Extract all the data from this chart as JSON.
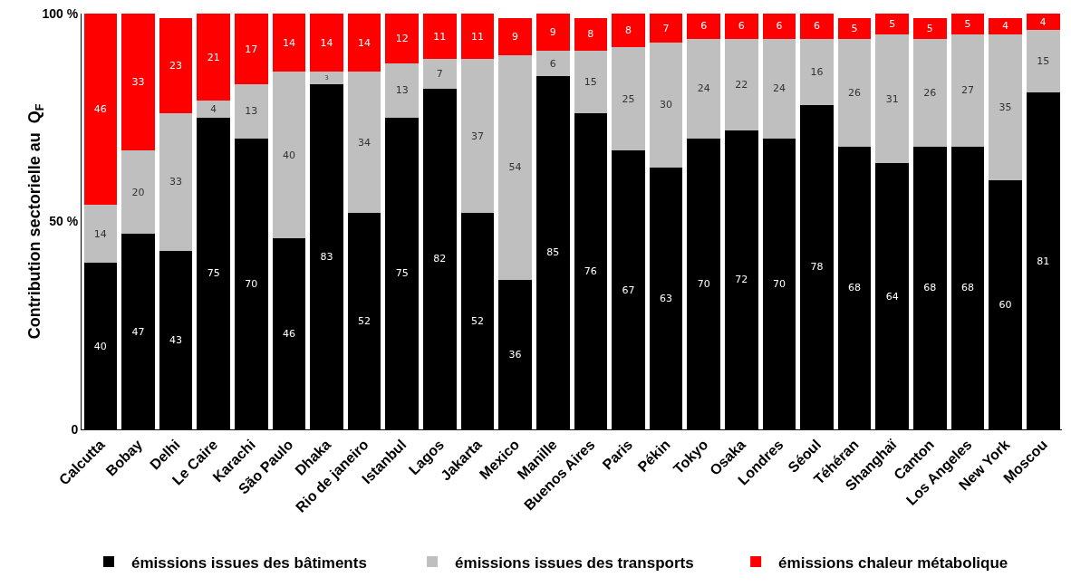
{
  "chart_data": {
    "type": "bar",
    "stacked": true,
    "ylabel": "Contribution sectorielle au  Q$_{F}$",
    "categories": [
      "Calcutta",
      "Bobay",
      "Delhi",
      "Le Caire",
      "Karachi",
      "São Paulo",
      "Dhaka",
      "Rio de janeiro",
      "Istanbul",
      "Lagos",
      "Jakarta",
      "Mexico",
      "Manille",
      "Buenos Aires",
      "Paris",
      "Pékin",
      "Tokyo",
      "Osaka",
      "Londres",
      "Séoul",
      "Téhéran",
      "Shanghaï",
      "Canton",
      "Los Angeles",
      "New York",
      "Moscou"
    ],
    "series": [
      {
        "name": "émissions issues des bâtiments",
        "color": "#000000",
        "values": [
          40,
          47,
          43,
          75,
          70,
          46,
          83,
          52,
          75,
          82,
          52,
          36,
          85,
          76,
          67,
          63,
          70,
          72,
          70,
          78,
          68,
          64,
          68,
          68,
          60,
          81
        ]
      },
      {
        "name": "émissions issues des transports",
        "color": "#bfbfbf",
        "values": [
          14,
          20,
          33,
          4,
          13,
          40,
          3,
          34,
          13,
          7,
          37,
          54,
          6,
          15,
          25,
          30,
          24,
          22,
          24,
          16,
          26,
          31,
          26,
          27,
          35,
          15
        ]
      },
      {
        "name": "émissions chaleur métabolique",
        "color": "#ff0000",
        "values": [
          46,
          33,
          23,
          21,
          17,
          14,
          14,
          14,
          12,
          11,
          11,
          9,
          9,
          8,
          8,
          7,
          6,
          6,
          6,
          6,
          5,
          5,
          5,
          5,
          4,
          4
        ]
      }
    ],
    "ylim": [
      0,
      100
    ],
    "yticks": [
      0,
      {
        "value": 50,
        "label": "50 %"
      },
      {
        "value": 100,
        "label": "100 %"
      }
    ],
    "data_labels": true,
    "grid": false,
    "legend": "bottom"
  }
}
